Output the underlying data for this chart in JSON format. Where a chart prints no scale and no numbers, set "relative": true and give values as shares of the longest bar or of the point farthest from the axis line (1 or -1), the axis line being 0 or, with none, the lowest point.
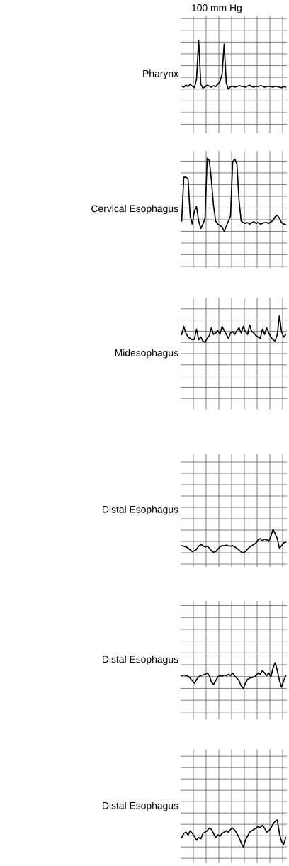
{
  "chart_data": [
    {
      "type": "line",
      "ylabel": "Pharynx",
      "annotations": [
        "100 mm Hg"
      ],
      "relative": true,
      "grid": true,
      "categories": [
        null,
        null,
        null,
        null,
        null,
        null,
        null,
        null,
        null,
        null,
        null,
        null,
        null,
        null,
        null,
        null,
        null,
        null,
        null,
        null,
        null,
        null,
        null,
        null,
        null,
        null,
        null,
        null,
        null,
        null,
        null,
        null,
        null,
        null,
        null,
        null,
        null,
        null,
        null,
        null,
        null,
        null,
        null,
        null,
        null,
        null,
        null,
        null,
        null,
        null
      ],
      "series": [
        {
          "color": "#000000",
          "values": [
            0.06,
            0.04,
            0.08,
            0.05,
            0.1,
            0.06,
            0.03,
            0.2,
            1.0,
            0.1,
            0.02,
            0.05,
            0.08,
            0.06,
            0.04,
            0.07,
            0.05,
            0.1,
            0.15,
            0.3,
            0.92,
            0.12,
            0.0,
            0.05,
            0.06,
            0.04,
            0.05,
            0.07,
            0.06,
            0.05,
            0.04,
            0.06,
            0.08,
            0.05,
            0.04,
            0.06,
            0.05,
            0.07,
            0.06,
            0.04,
            0.05,
            0.06,
            0.05,
            0.04,
            0.06,
            0.05,
            0.04,
            0.03,
            0.05,
            0.04
          ]
        }
      ]
    },
    {
      "type": "line",
      "ylabel": "Cervical Esophagus",
      "relative": true,
      "grid": true,
      "categories": [
        null,
        null,
        null,
        null,
        null,
        null,
        null,
        null,
        null,
        null,
        null,
        null,
        null,
        null,
        null,
        null,
        null,
        null,
        null,
        null,
        null,
        null,
        null,
        null,
        null,
        null,
        null,
        null,
        null,
        null,
        null,
        null,
        null,
        null,
        null,
        null,
        null,
        null,
        null,
        null,
        null,
        null,
        null,
        null,
        null,
        null,
        null,
        null,
        null,
        null
      ],
      "series": [
        {
          "color": "#000000",
          "values": [
            0.14,
            0.74,
            0.74,
            0.72,
            0.21,
            0.1,
            0.28,
            0.34,
            0.14,
            0.04,
            0.1,
            0.18,
            1.0,
            0.97,
            0.7,
            0.35,
            0.14,
            0.1,
            0.08,
            0.06,
            0.0,
            0.07,
            0.14,
            0.21,
            0.95,
            0.99,
            0.92,
            0.42,
            0.14,
            0.12,
            0.11,
            0.12,
            0.1,
            0.12,
            0.13,
            0.11,
            0.12,
            0.1,
            0.11,
            0.12,
            0.12,
            0.11,
            0.13,
            0.15,
            0.2,
            0.22,
            0.18,
            0.12,
            0.1,
            0.09
          ]
        }
      ]
    },
    {
      "type": "line",
      "ylabel": "Midesophagus",
      "relative": true,
      "grid": true,
      "categories": [
        null,
        null,
        null,
        null,
        null,
        null,
        null,
        null,
        null,
        null,
        null,
        null,
        null,
        null,
        null,
        null,
        null,
        null,
        null,
        null,
        null,
        null,
        null,
        null,
        null,
        null,
        null,
        null,
        null,
        null,
        null,
        null,
        null,
        null,
        null,
        null,
        null,
        null,
        null,
        null,
        null,
        null,
        null,
        null,
        null,
        null,
        null,
        null,
        null,
        null
      ],
      "series": [
        {
          "color": "#000000",
          "values": [
            0.3,
            0.6,
            0.35,
            0.2,
            0.15,
            0.1,
            0.12,
            0.5,
            0.1,
            0.2,
            0.05,
            0.0,
            0.15,
            0.25,
            0.55,
            0.3,
            0.35,
            0.45,
            0.3,
            0.6,
            0.45,
            0.3,
            0.15,
            0.35,
            0.4,
            0.3,
            0.45,
            0.55,
            0.35,
            0.6,
            0.4,
            0.3,
            0.65,
            0.4,
            0.35,
            0.25,
            0.2,
            0.15,
            0.5,
            0.3,
            0.55,
            0.35,
            0.2,
            0.1,
            0.05,
            0.3,
            1.0,
            0.4,
            0.2,
            0.3
          ]
        }
      ]
    },
    {
      "type": "line",
      "ylabel": "Distal Esophagus",
      "relative": true,
      "grid": true,
      "categories": [
        null,
        null,
        null,
        null,
        null,
        null,
        null,
        null,
        null,
        null,
        null,
        null,
        null,
        null,
        null,
        null,
        null,
        null,
        null,
        null,
        null,
        null,
        null,
        null,
        null,
        null,
        null,
        null,
        null,
        null,
        null,
        null,
        null,
        null,
        null,
        null,
        null,
        null,
        null,
        null,
        null,
        null,
        null,
        null,
        null,
        null,
        null,
        null,
        null,
        null
      ],
      "series": [
        {
          "color": "#000000",
          "values": [
            0.3,
            0.28,
            0.25,
            0.2,
            0.12,
            0.05,
            0.08,
            0.15,
            0.28,
            0.35,
            0.3,
            0.25,
            0.28,
            0.2,
            0.08,
            0.02,
            0.05,
            0.15,
            0.25,
            0.3,
            0.3,
            0.32,
            0.3,
            0.28,
            0.3,
            0.25,
            0.18,
            0.12,
            0.03,
            0.0,
            0.06,
            0.15,
            0.25,
            0.3,
            0.35,
            0.42,
            0.55,
            0.6,
            0.5,
            0.58,
            0.55,
            0.48,
            0.7,
            1.0,
            0.8,
            0.6,
            0.2,
            0.3,
            0.42,
            0.45
          ]
        }
      ]
    },
    {
      "type": "line",
      "ylabel": "Distal Esophagus",
      "relative": true,
      "grid": true,
      "categories": [
        null,
        null,
        null,
        null,
        null,
        null,
        null,
        null,
        null,
        null,
        null,
        null,
        null,
        null,
        null,
        null,
        null,
        null,
        null,
        null,
        null,
        null,
        null,
        null,
        null,
        null,
        null,
        null,
        null,
        null,
        null,
        null,
        null,
        null,
        null,
        null,
        null,
        null,
        null,
        null,
        null,
        null,
        null,
        null,
        null,
        null,
        null,
        null,
        null,
        null
      ],
      "series": [
        {
          "color": "#000000",
          "values": [
            0.5,
            0.52,
            0.5,
            0.48,
            0.4,
            0.3,
            0.2,
            0.35,
            0.45,
            0.5,
            0.52,
            0.55,
            0.6,
            0.5,
            0.25,
            0.15,
            0.3,
            0.45,
            0.5,
            0.48,
            0.52,
            0.5,
            0.55,
            0.5,
            0.6,
            0.48,
            0.4,
            0.3,
            0.1,
            0.0,
            0.2,
            0.35,
            0.4,
            0.42,
            0.45,
            0.5,
            0.6,
            0.55,
            0.7,
            0.6,
            0.5,
            0.6,
            0.45,
            0.8,
            1.0,
            0.7,
            0.3,
            0.05,
            0.3,
            0.5
          ]
        }
      ]
    },
    {
      "type": "line",
      "ylabel": "Distal Esophagus",
      "relative": true,
      "grid": true,
      "categories": [
        null,
        null,
        null,
        null,
        null,
        null,
        null,
        null,
        null,
        null,
        null,
        null,
        null,
        null,
        null,
        null,
        null,
        null,
        null,
        null,
        null,
        null,
        null,
        null,
        null,
        null,
        null,
        null,
        null,
        null,
        null,
        null,
        null,
        null,
        null,
        null,
        null,
        null,
        null,
        null,
        null,
        null,
        null,
        null,
        null,
        null,
        null,
        null,
        null,
        null
      ],
      "series": [
        {
          "color": "#000000",
          "values": [
            0.35,
            0.5,
            0.55,
            0.45,
            0.6,
            0.5,
            0.4,
            0.25,
            0.35,
            0.3,
            0.5,
            0.55,
            0.6,
            0.7,
            0.65,
            0.5,
            0.35,
            0.45,
            0.4,
            0.5,
            0.55,
            0.6,
            0.55,
            0.65,
            0.7,
            0.62,
            0.5,
            0.35,
            0.15,
            0.0,
            0.25,
            0.4,
            0.55,
            0.6,
            0.65,
            0.7,
            0.75,
            0.72,
            0.8,
            0.7,
            0.55,
            0.6,
            0.7,
            0.85,
            0.95,
            1.0,
            0.5,
            0.2,
            0.1,
            0.35
          ]
        }
      ]
    }
  ]
}
